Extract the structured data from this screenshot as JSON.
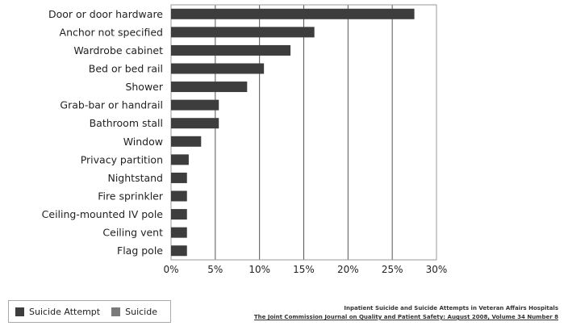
{
  "chart_data": {
    "type": "bar",
    "orientation": "horizontal",
    "categories": [
      "Door or door hardware",
      "Anchor not specified",
      "Wardrobe cabinet",
      "Bed or bed rail",
      "Shower",
      "Grab-bar or handrail",
      "Bathroom stall",
      "Window",
      "Privacy partition",
      "Nightstand",
      "Fire sprinkler",
      "Ceiling-mounted IV pole",
      "Ceiling vent",
      "Flag pole"
    ],
    "series": [
      {
        "name": "Suicide Attempt",
        "values": [
          27.5,
          16.2,
          13.5,
          10.5,
          8.6,
          5.4,
          5.4,
          3.4,
          2.0,
          1.8,
          1.8,
          1.8,
          1.8,
          1.8
        ]
      }
    ],
    "xlim": [
      0,
      30
    ],
    "xticks": [
      "0%",
      "5%",
      "10%",
      "15%",
      "20%",
      "25%",
      "30%"
    ],
    "grid": true,
    "legend_position": "bottom-left",
    "colors": {
      "suicide_attempt": "#3d3d3d",
      "suicide": "#7a7a7a"
    }
  },
  "legend": {
    "items": [
      {
        "label": "Suicide Attempt",
        "color": "#3d3d3d"
      },
      {
        "label": "Suicide",
        "color": "#7a7a7a"
      }
    ]
  },
  "source": {
    "line1": "Inpatient Suicide and Suicide Attempts in Veteran Affairs Hospitals",
    "line2": "The Joint Commission Journal on Quality and Patient Safety: August 2008, Volume 34 Number 8"
  }
}
